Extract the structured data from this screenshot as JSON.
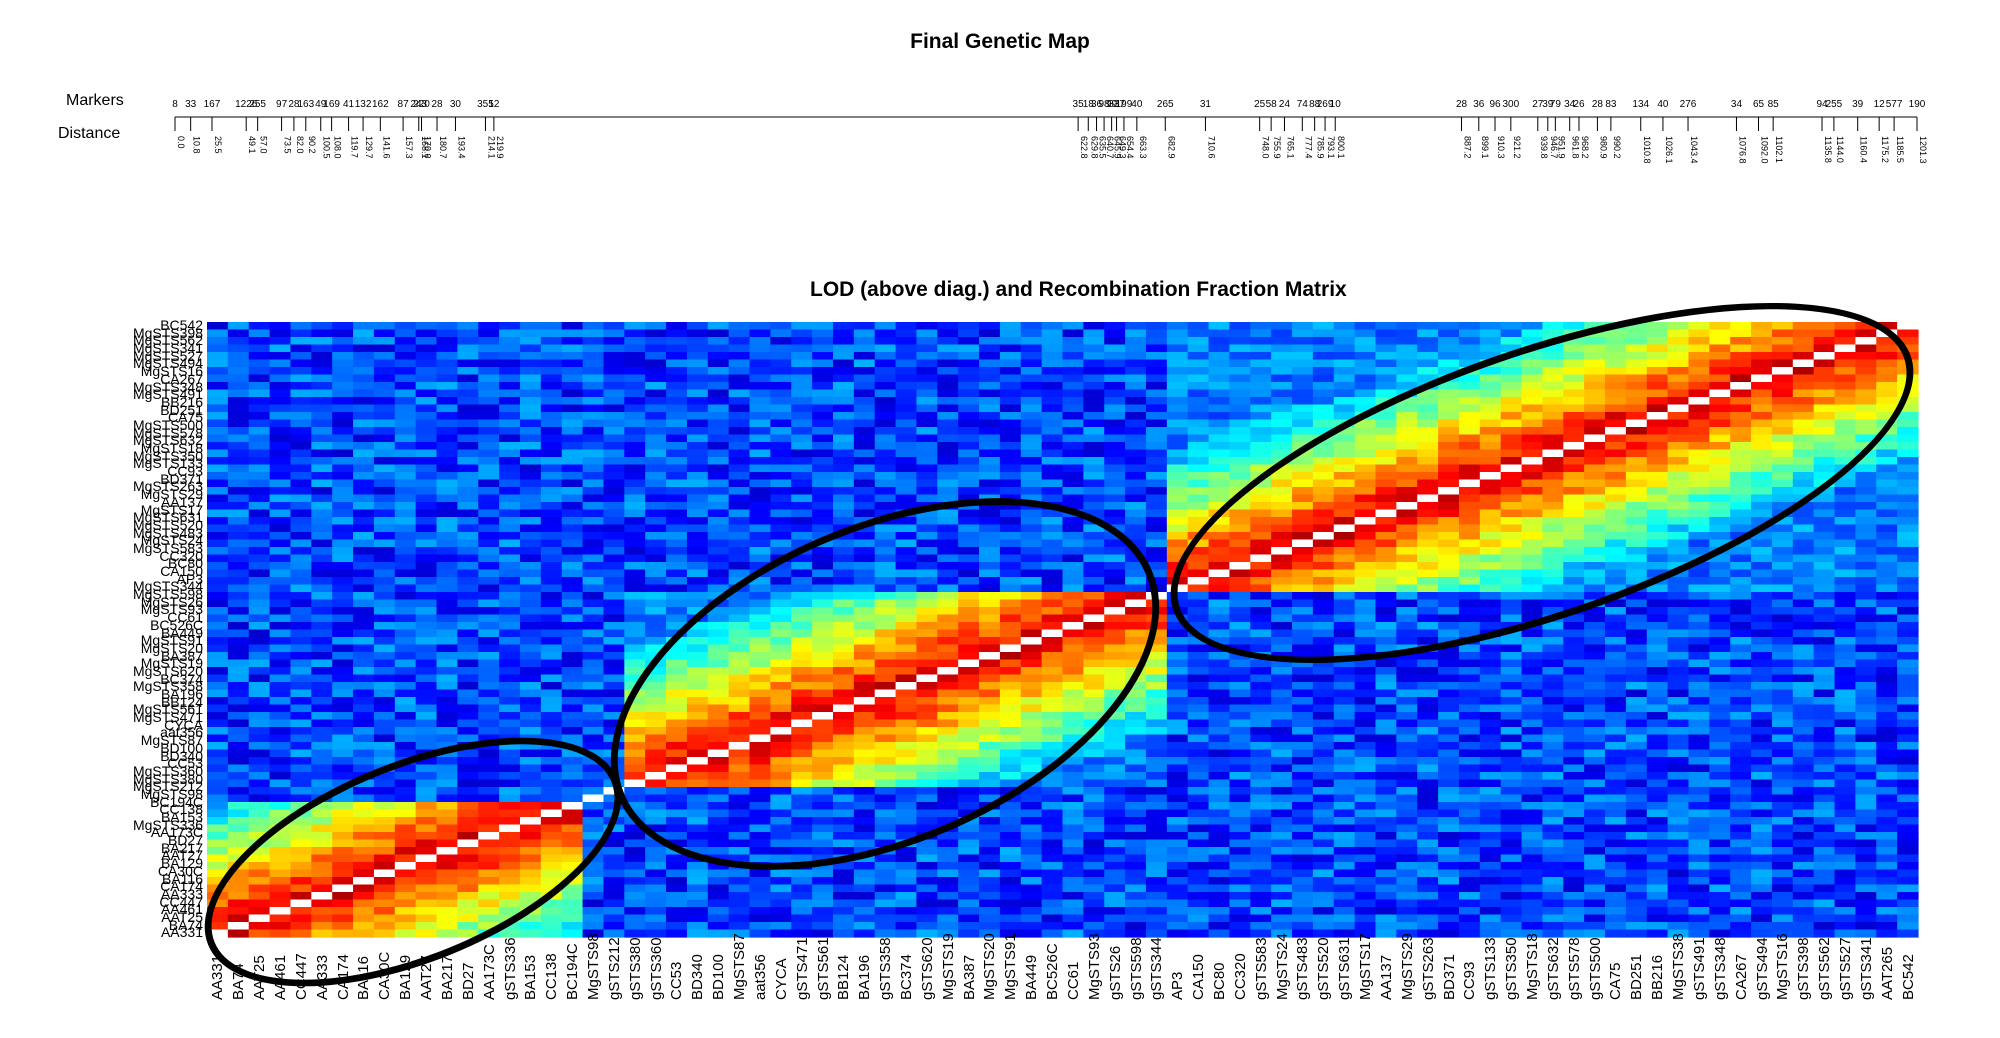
{
  "titles": {
    "map": "Final Genetic Map",
    "matrix": "LOD (above diag.) and Recombination Fraction Matrix"
  },
  "map_labels": {
    "markers": "Markers",
    "distance": "Distance"
  },
  "chart_data": [
    {
      "type": "line",
      "title": "Final Genetic Map",
      "marker_ticks_top": [
        "8",
        "33",
        "167",
        "1226",
        "255",
        "97",
        "28",
        "163",
        "49",
        "169",
        "41",
        "132",
        "162",
        "87",
        "243",
        "220",
        "28",
        "30",
        "355",
        "12",
        "35",
        "18",
        "36",
        "98",
        "99",
        "337",
        "199",
        "40",
        "265",
        "31",
        "25",
        "58",
        "24",
        "74",
        "88",
        "269",
        "10",
        "28",
        "36",
        "96",
        "300",
        "27",
        "39",
        "79",
        "34",
        "26",
        "28",
        "83",
        "134",
        "40",
        "276",
        "34",
        "65",
        "85",
        "94",
        "255",
        "39",
        "12",
        "577",
        "190"
      ],
      "distance_ticks": [
        "0.0",
        "10.8",
        "25.5",
        "49.1",
        "57.0",
        "73.5",
        "82.0",
        "90.2",
        "100.5",
        "108.0",
        "119.7",
        "129.7",
        "141.6",
        "157.3",
        "168.1",
        "170.0",
        "180.7",
        "193.4",
        "214.1",
        "219.9",
        "622.8",
        "629.8",
        "635.5",
        "640.7",
        "645.9",
        "649.3",
        "654.4",
        "663.3",
        "682.9",
        "710.6",
        "748.0",
        "755.9",
        "765.1",
        "777.4",
        "785.9",
        "793.1",
        "800.1",
        "887.2",
        "899.1",
        "910.3",
        "921.2",
        "939.8",
        "946.7",
        "951.9",
        "961.8",
        "968.2",
        "980.9",
        "990.2",
        "1010.8",
        "1026.1",
        "1043.4",
        "1076.8",
        "1092.0",
        "1102.1",
        "1135.8",
        "1144.0",
        "1160.4",
        "1175.2",
        "1185.5",
        "1201.3"
      ]
    },
    {
      "type": "heatmap",
      "title": "LOD (above diag.) and Recombination Fraction Matrix",
      "x_labels": [
        "AA331",
        "BA74",
        "AAT25",
        "AA461",
        "CC447",
        "AA333",
        "CA174",
        "BA116",
        "CA30C",
        "BA129",
        "AAT27",
        "BA217",
        "BD27",
        "AA173C",
        "gSTS336",
        "BA153",
        "CC138",
        "BC194C",
        "MgSTS98",
        "gSTS212",
        "gSTS380",
        "gSTS360",
        "CC53",
        "BD340",
        "BD100",
        "MgSTS87",
        "aat356",
        "CYCA",
        "gSTS471",
        "gSTS561",
        "BB124",
        "BA196",
        "gSTS358",
        "BC374",
        "gSTS620",
        "MgSTS19",
        "BA387",
        "MgSTS20",
        "MgSTS91",
        "BA449",
        "BC526C",
        "CC61",
        "MgSTS93",
        "gSTS26",
        "gSTS598",
        "gSTS344",
        "AP3",
        "CA150",
        "BC80",
        "CC320",
        "gSTS583",
        "MgSTS24",
        "gSTS483",
        "gSTS520",
        "gSTS631",
        "MgSTS17",
        "AA137",
        "MgSTS29",
        "gSTS263",
        "BD371",
        "CC93",
        "gSTS133",
        "gSTS350",
        "MgSTS18",
        "gSTS632",
        "gSTS578",
        "gSTS500",
        "CA75",
        "BD251",
        "BB216",
        "MgSTS38",
        "gSTS491",
        "gSTS348",
        "CA267",
        "gSTS494",
        "MgSTS16",
        "gSTS398",
        "gSTS562",
        "gSTS527",
        "gSTS341",
        "AAT265",
        "BC542"
      ],
      "y_labels_visible": [
        "BC542",
        "MgSTS398",
        "MgSTS562",
        "MgSTS341",
        "MgSTS527",
        "MgSTS494",
        "MgSTS16",
        "CA267",
        "MgSTS348",
        "MgSTS491",
        "BB216",
        "BD251",
        "CA75",
        "MgSTS500",
        "MgSTS578",
        "MgSTS632",
        "MgSTS18",
        "MgSTS350",
        "MgSTS133",
        "CC93",
        "BD371",
        "MgSTS263",
        "MgSTS29",
        "AA137",
        "MgSTS17",
        "MgSTS631",
        "MgSTS520",
        "MgSTS483",
        "MgSTS24",
        "MgSTS583",
        "CC320",
        "BC80",
        "CA150",
        "AP3",
        "MgSTS344",
        "MgSTS598",
        "MgSTS26",
        "MgSTS93",
        "CC61",
        "BC526C",
        "BA449",
        "MgSTS91",
        "MgSTS20",
        "BA387",
        "MgSTS19",
        "MgSTS620",
        "BC374",
        "MgSTS358",
        "BA196",
        "BB124",
        "MgSTS561",
        "MgSTS471",
        "CYCA",
        "aat356",
        "MgSTS87",
        "BD100",
        "BD340",
        "CC53",
        "MgSTS360",
        "MgSTS380",
        "MgSTS212",
        "MgSTS98",
        "BC194C",
        "CC138",
        "BA153",
        "MgSTS336",
        "AA173C",
        "BD27",
        "BA217",
        "AAT27",
        "BA129",
        "CA30C",
        "BA116",
        "CA174",
        "AA333",
        "CC447",
        "AA461",
        "AAT25",
        "BA74",
        "AA331"
      ],
      "blocks": [
        {
          "name": "linkage-group-1",
          "from": "AA331",
          "to": "BC194C"
        },
        {
          "name": "linkage-group-2",
          "from": "gSTS380",
          "to": "gSTS344"
        },
        {
          "name": "linkage-group-3",
          "from": "AP3",
          "to": "BC542"
        }
      ],
      "colormap": [
        "#00007f",
        "#0000ff",
        "#007fff",
        "#00ffff",
        "#7fff7f",
        "#ffff00",
        "#ff7f00",
        "#ff0000",
        "#7f0000"
      ],
      "diagonal_color": "#ffffff"
    }
  ]
}
